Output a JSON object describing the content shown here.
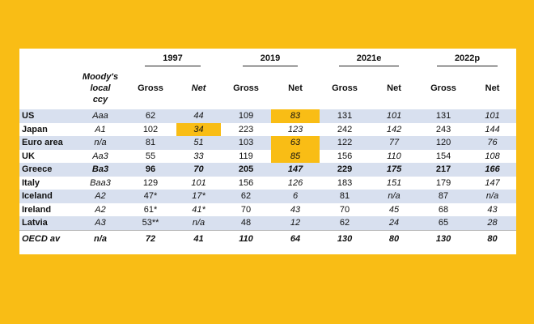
{
  "years": [
    "1997",
    "2019",
    "2021e",
    "2022p"
  ],
  "columns": {
    "moody": "Moody's local ccy",
    "gross": "Gross",
    "net": "Net"
  },
  "rows": [
    {
      "country": "US",
      "moody": "Aaa",
      "g97": "62",
      "n97": "44",
      "g19": "109",
      "n19": "83",
      "g21": "131",
      "n21": "101",
      "g22": "131",
      "n22": "101"
    },
    {
      "country": "Japan",
      "moody": "A1",
      "g97": "102",
      "n97": "34",
      "g19": "223",
      "n19": "123",
      "g21": "242",
      "n21": "142",
      "g22": "243",
      "n22": "144"
    },
    {
      "country": "Euro area",
      "moody": "n/a",
      "g97": "81",
      "n97": "51",
      "g19": "103",
      "n19": "63",
      "g21": "122",
      "n21": "77",
      "g22": "120",
      "n22": "76"
    },
    {
      "country": "UK",
      "moody": "Aa3",
      "g97": "55",
      "n97": "33",
      "g19": "119",
      "n19": "85",
      "g21": "156",
      "n21": "110",
      "g22": "154",
      "n22": "108"
    },
    {
      "country": "Greece",
      "moody": "Ba3",
      "g97": "96",
      "n97": "70",
      "g19": "205",
      "n19": "147",
      "g21": "229",
      "n21": "175",
      "g22": "217",
      "n22": "166"
    },
    {
      "country": "Italy",
      "moody": "Baa3",
      "g97": "129",
      "n97": "101",
      "g19": "156",
      "n19": "126",
      "g21": "183",
      "n21": "151",
      "g22": "179",
      "n22": "147"
    },
    {
      "country": "Iceland",
      "moody": "A2",
      "g97": "47*",
      "n97": "17*",
      "g19": "62",
      "n19": "6",
      "g21": "81",
      "n21": "n/a",
      "g22": "87",
      "n22": "n/a"
    },
    {
      "country": "Ireland",
      "moody": "A2",
      "g97": "61*",
      "n97": "41*",
      "g19": "70",
      "n19": "43",
      "g21": "70",
      "n21": "45",
      "g22": "68",
      "n22": "43"
    },
    {
      "country": "Latvia",
      "moody": "A3",
      "g97": "53**",
      "n97": "n/a",
      "g19": "48",
      "n19": "12",
      "g21": "62",
      "n21": "24",
      "g22": "65",
      "n22": "28"
    }
  ],
  "oecd": {
    "country": "OECD av",
    "moody": "n/a",
    "g97": "72",
    "n97": "41",
    "g19": "110",
    "n19": "64",
    "g21": "130",
    "n21": "80",
    "g22": "130",
    "n22": "80"
  },
  "highlight_color": "#f9bd15",
  "shade_color": "#d8e0ef"
}
